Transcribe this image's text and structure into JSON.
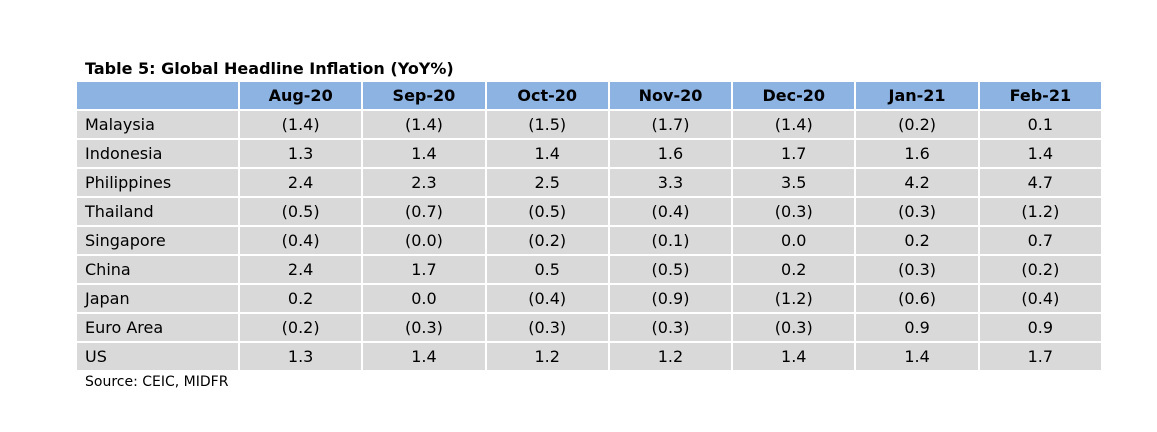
{
  "title": "Table 5: Global Headline Inflation (YoY%)",
  "table": {
    "columns": [
      "Aug-20",
      "Sep-20",
      "Oct-20",
      "Nov-20",
      "Dec-20",
      "Jan-21",
      "Feb-21"
    ],
    "rows": [
      [
        "Malaysia",
        "(1.4)",
        "(1.4)",
        "(1.5)",
        "(1.7)",
        "(1.4)",
        "(0.2)",
        "0.1"
      ],
      [
        "Indonesia",
        "1.3",
        "1.4",
        "1.4",
        "1.6",
        "1.7",
        "1.6",
        "1.4"
      ],
      [
        "Philippines",
        "2.4",
        "2.3",
        "2.5",
        "3.3",
        "3.5",
        "4.2",
        "4.7"
      ],
      [
        "Thailand",
        "(0.5)",
        "(0.7)",
        "(0.5)",
        "(0.4)",
        "(0.3)",
        "(0.3)",
        "(1.2)"
      ],
      [
        "Singapore",
        "(0.4)",
        "(0.0)",
        "(0.2)",
        "(0.1)",
        "0.0",
        "0.2",
        "0.7"
      ],
      [
        "China",
        "2.4",
        "1.7",
        "0.5",
        "(0.5)",
        "0.2",
        "(0.3)",
        "(0.2)"
      ],
      [
        "Japan",
        "0.2",
        "0.0",
        "(0.4)",
        "(0.9)",
        "(1.2)",
        "(0.6)",
        "(0.4)"
      ],
      [
        "Euro Area",
        "(0.2)",
        "(0.3)",
        "(0.3)",
        "(0.3)",
        "(0.3)",
        "0.9",
        "0.9"
      ],
      [
        "US",
        "1.3",
        "1.4",
        "1.2",
        "1.2",
        "1.4",
        "1.4",
        "1.7"
      ]
    ]
  },
  "source": "Source: CEIC, MIDFR"
}
